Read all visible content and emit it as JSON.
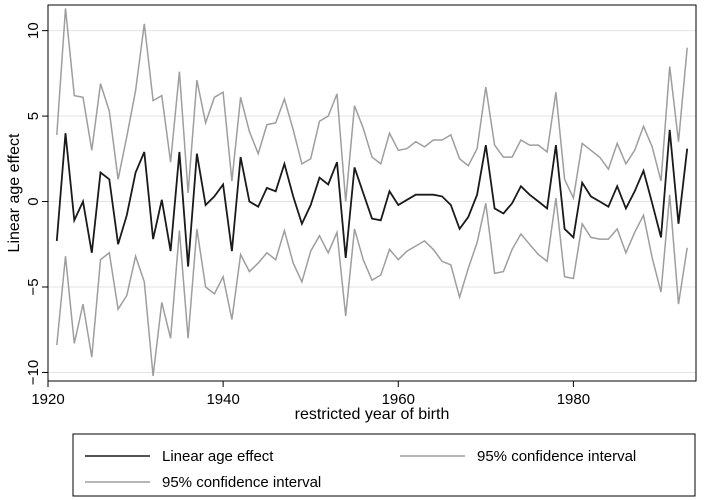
{
  "chart_data": {
    "type": "line",
    "xlabel": "restricted year of birth",
    "ylabel": "Linear age effect",
    "xlim": [
      1920,
      1994
    ],
    "ylim": [
      -10.5,
      11.5
    ],
    "grid": true,
    "legend_placement": "bottom",
    "x_ticks": [
      1920,
      1940,
      1960,
      1980
    ],
    "y_ticks": [
      10,
      5,
      0,
      -5,
      -10
    ],
    "x_tick_labels": [
      "1920",
      "1940",
      "1960",
      "1980"
    ],
    "y_tick_labels": [
      "10",
      "5",
      "0",
      "−5",
      "−10"
    ],
    "x": [
      1921,
      1922,
      1923,
      1924,
      1925,
      1926,
      1927,
      1928,
      1929,
      1930,
      1931,
      1932,
      1933,
      1934,
      1935,
      1936,
      1937,
      1938,
      1939,
      1940,
      1941,
      1942,
      1943,
      1944,
      1945,
      1946,
      1947,
      1948,
      1949,
      1950,
      1951,
      1952,
      1953,
      1954,
      1955,
      1956,
      1957,
      1958,
      1959,
      1960,
      1961,
      1962,
      1963,
      1964,
      1965,
      1966,
      1967,
      1968,
      1969,
      1970,
      1971,
      1972,
      1973,
      1974,
      1975,
      1976,
      1977,
      1978,
      1979,
      1980,
      1981,
      1982,
      1983,
      1984,
      1985,
      1986,
      1987,
      1988,
      1989,
      1990,
      1991,
      1992,
      1993
    ],
    "series": [
      {
        "name": "Linear age effect",
        "color": "#1a1a1a",
        "values": [
          -2.3,
          4.0,
          -1.1,
          0.0,
          -3.0,
          1.7,
          1.3,
          -2.5,
          -0.8,
          1.7,
          2.9,
          -2.2,
          0.1,
          -2.9,
          2.9,
          -3.8,
          2.8,
          -0.2,
          0.3,
          1.0,
          -2.9,
          2.6,
          0.0,
          -0.3,
          0.8,
          0.6,
          2.2,
          0.3,
          -1.3,
          -0.2,
          1.4,
          1.0,
          2.3,
          -3.3,
          2.0,
          0.5,
          -1.0,
          -1.1,
          0.6,
          -0.2,
          0.1,
          0.4,
          0.4,
          0.4,
          0.3,
          -0.2,
          -1.6,
          -0.9,
          0.4,
          3.3,
          -0.4,
          -0.7,
          -0.1,
          0.9,
          0.4,
          0.0,
          -0.4,
          3.3,
          -1.6,
          -2.1,
          1.1,
          0.3,
          0.0,
          -0.3,
          0.9,
          -0.4,
          0.6,
          1.8,
          -0.1,
          -2.1,
          4.2,
          -1.3,
          3.1
        ]
      },
      {
        "name": "95% confidence interval",
        "color": "#9e9e9e",
        "values": [
          3.9,
          11.3,
          6.2,
          6.1,
          3.0,
          6.9,
          5.3,
          1.3,
          3.8,
          6.5,
          10.4,
          5.9,
          6.2,
          2.3,
          7.6,
          0.5,
          7.1,
          4.6,
          6.1,
          6.4,
          1.2,
          6.1,
          4.1,
          2.8,
          4.5,
          4.6,
          6.0,
          4.2,
          2.2,
          2.5,
          4.7,
          5.0,
          6.3,
          0.0,
          5.6,
          4.3,
          2.6,
          2.2,
          4.0,
          3.0,
          3.1,
          3.5,
          3.2,
          3.6,
          3.6,
          3.9,
          2.5,
          2.1,
          3.1,
          6.7,
          3.3,
          2.6,
          2.6,
          3.6,
          3.3,
          3.3,
          2.9,
          6.4,
          1.3,
          0.2,
          3.4,
          3.0,
          2.6,
          1.9,
          3.4,
          2.2,
          3.0,
          4.4,
          3.2,
          1.2,
          7.9,
          3.5,
          9.0
        ]
      },
      {
        "name": "95% confidence interval",
        "color": "#9e9e9e",
        "values": [
          -8.4,
          -3.2,
          -8.3,
          -6.0,
          -9.1,
          -3.4,
          -3.0,
          -6.3,
          -5.5,
          -3.2,
          -4.7,
          -10.2,
          -5.9,
          -8.0,
          -1.7,
          -8.0,
          -1.6,
          -5.0,
          -5.4,
          -4.4,
          -6.9,
          -3.1,
          -4.1,
          -3.6,
          -3.0,
          -3.4,
          -1.7,
          -3.6,
          -4.7,
          -2.9,
          -2.0,
          -3.0,
          -1.8,
          -6.7,
          -1.6,
          -3.4,
          -4.6,
          -4.3,
          -2.8,
          -3.4,
          -2.9,
          -2.6,
          -2.3,
          -2.8,
          -3.5,
          -3.7,
          -5.6,
          -3.9,
          -2.4,
          -0.1,
          -4.2,
          -4.1,
          -2.8,
          -1.9,
          -2.5,
          -3.1,
          -3.5,
          0.2,
          -4.4,
          -4.5,
          -1.3,
          -2.1,
          -2.2,
          -2.2,
          -1.6,
          -3.0,
          -1.8,
          -0.8,
          -3.3,
          -5.3,
          0.4,
          -6.0,
          -2.7
        ]
      }
    ],
    "legend": {
      "entries": [
        {
          "label": "Linear age effect",
          "color": "#1a1a1a"
        },
        {
          "label": "95% confidence interval",
          "color": "#9e9e9e"
        },
        {
          "label": "95% confidence interval",
          "color": "#9e9e9e"
        }
      ]
    }
  }
}
